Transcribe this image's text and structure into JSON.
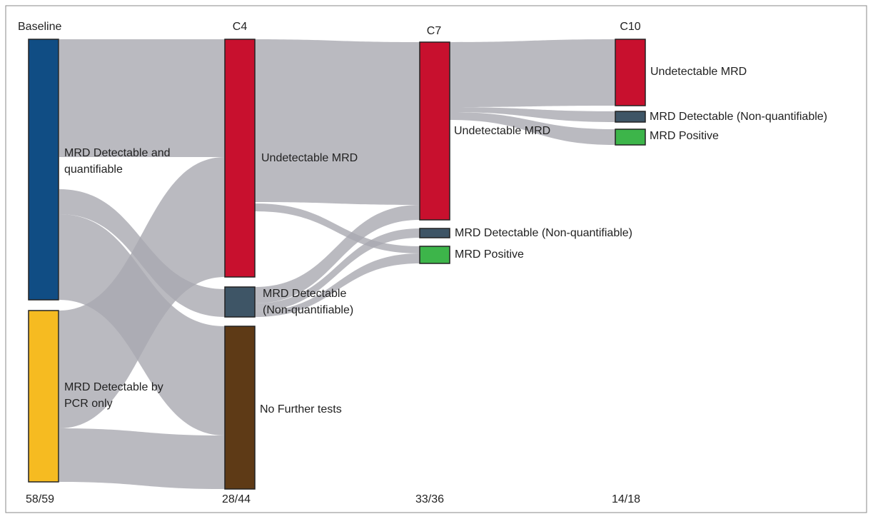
{
  "columns": [
    {
      "title": "Baseline",
      "footer": "58/59",
      "nodes": [
        {
          "lines": [
            "MRD Detectable and",
            "quantifiable"
          ]
        },
        {
          "lines": [
            "MRD Detectable by",
            "PCR only"
          ]
        }
      ]
    },
    {
      "title": "C4",
      "footer": "28/44",
      "nodes": [
        {
          "lines": [
            "Undetectable MRD"
          ]
        },
        {
          "lines": [
            "MRD Detectable",
            "(Non-quantifiable)"
          ]
        },
        {
          "lines": [
            "No Further tests"
          ]
        }
      ]
    },
    {
      "title": "C7",
      "footer": "33/36",
      "nodes": [
        {
          "lines": [
            "Undetectable MRD"
          ]
        },
        {
          "lines": [
            "MRD Detectable (Non-quantifiable)"
          ]
        },
        {
          "lines": [
            "MRD Positive"
          ]
        }
      ]
    },
    {
      "title": "C10",
      "footer": "14/18",
      "nodes": [
        {
          "lines": [
            "Undetectable MRD"
          ]
        },
        {
          "lines": [
            "MRD Detectable (Non-quantifiable)"
          ]
        },
        {
          "lines": [
            "MRD Positive"
          ]
        }
      ]
    }
  ]
}
